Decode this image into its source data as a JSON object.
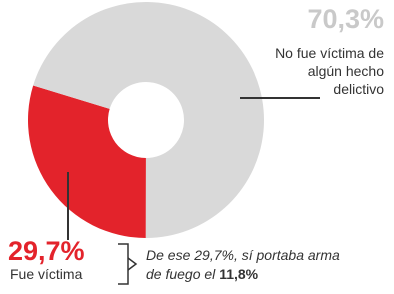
{
  "chart_data": {
    "type": "donut",
    "categories": [
      "No fue víctima de algún hecho delictivo",
      "Fue víctima"
    ],
    "values": [
      70.3,
      29.7
    ],
    "value_labels": [
      "70,3%",
      "29,7%"
    ],
    "colors": [
      "#d9d9d9",
      "#e3232b"
    ],
    "annotation": {
      "text": "De ese 29,7%, sí portaba arma de fuego el",
      "highlight": "11,8%"
    }
  }
}
